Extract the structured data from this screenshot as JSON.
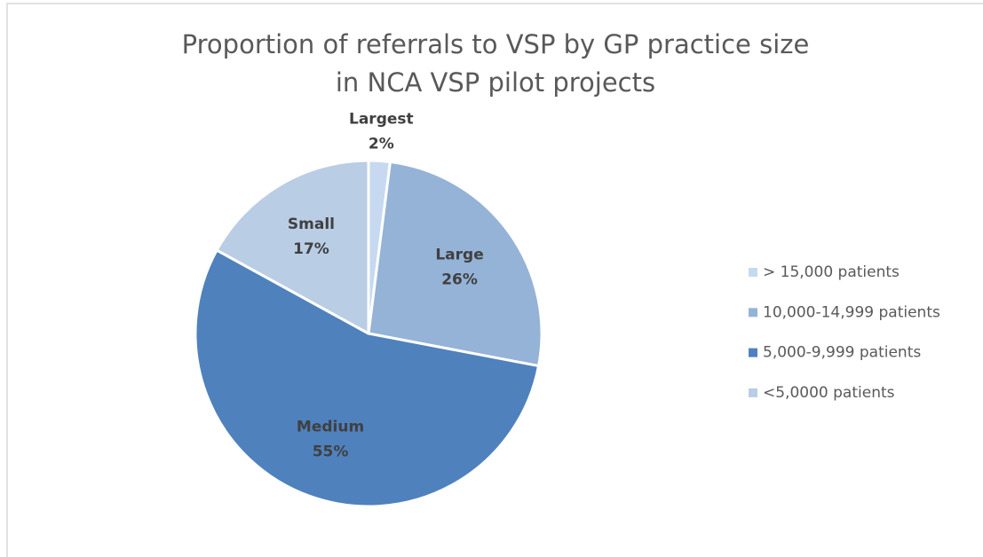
{
  "chart_data": {
    "type": "pie",
    "title_lines": [
      "Proportion of referrals to VSP by GP practice size",
      "in NCA VSP pilot projects"
    ],
    "categories": [
      "> 15,000 patients",
      "10,000-14,999 patients",
      "5,000-9,999 patients",
      "<5,0000 patients"
    ],
    "slice_labels": [
      "Largest",
      "Large",
      "Medium",
      "Small"
    ],
    "values": [
      2,
      26,
      55,
      17
    ],
    "value_labels": [
      "2%",
      "26%",
      "55%",
      "17%"
    ],
    "colors": [
      "#c6d9f0",
      "#95b3d7",
      "#4f81bd",
      "#b9cde5"
    ],
    "legend": "right"
  }
}
